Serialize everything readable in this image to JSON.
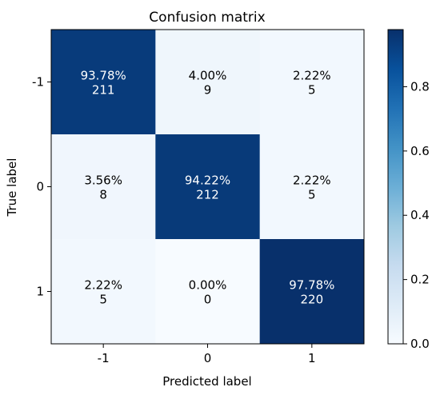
{
  "chart_data": {
    "type": "heatmap",
    "title": "Confusion matrix",
    "xlabel": "Predicted label",
    "ylabel": "True label",
    "x_categories": [
      "-1",
      "0",
      "1"
    ],
    "y_categories": [
      "-1",
      "0",
      "1"
    ],
    "values": [
      [
        0.9378,
        0.04,
        0.0222
      ],
      [
        0.0356,
        0.9422,
        0.0222
      ],
      [
        0.0222,
        0.0,
        0.9778
      ]
    ],
    "percent_labels": [
      [
        "93.78%",
        "4.00%",
        "2.22%"
      ],
      [
        "3.56%",
        "94.22%",
        "2.22%"
      ],
      [
        "2.22%",
        "0.00%",
        "97.78%"
      ]
    ],
    "counts": [
      [
        "211",
        "9",
        "5"
      ],
      [
        "8",
        "212",
        "5"
      ],
      [
        "5",
        "0",
        "220"
      ]
    ],
    "colormap": "Blues",
    "colorbar": {
      "ticks": [
        "0.0",
        "0.2",
        "0.4",
        "0.6",
        "0.8"
      ],
      "tick_values": [
        0.0,
        0.2,
        0.4,
        0.6,
        0.8
      ],
      "range": [
        0.0,
        0.9778
      ]
    },
    "text_colors": {
      "dark_cell": "#ffffff",
      "light_cell": "#000000"
    }
  }
}
